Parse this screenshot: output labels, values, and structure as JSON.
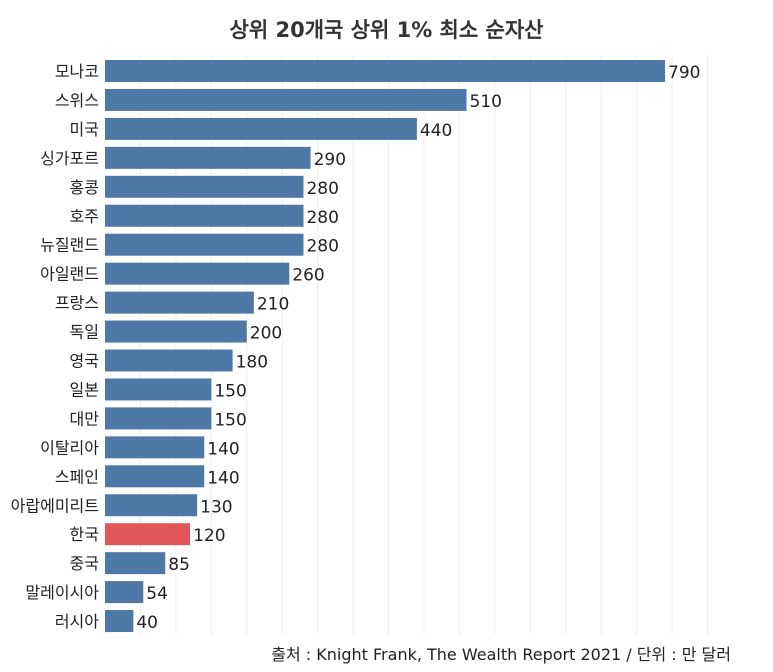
{
  "chart_data": {
    "type": "bar",
    "orientation": "horizontal",
    "title": "상위 20개국 상위 1% 최소 순자산",
    "categories": [
      "모나코",
      "스위스",
      "미국",
      "싱가포르",
      "홍콩",
      "호주",
      "뉴질랜드",
      "아일랜드",
      "프랑스",
      "독일",
      "영국",
      "일본",
      "대만",
      "이탈리아",
      "스페인",
      "아랍에미리트",
      "한국",
      "중국",
      "말레이시아",
      "러시아"
    ],
    "values": [
      790,
      510,
      440,
      290,
      280,
      280,
      280,
      260,
      210,
      200,
      180,
      150,
      150,
      140,
      140,
      130,
      120,
      85,
      54,
      40
    ],
    "highlight": "한국",
    "xlim": [
      0,
      850
    ],
    "grid": true,
    "colors": {
      "bar": "#4e79a7",
      "highlight": "#e15759"
    },
    "source": "출처 : Knight Frank, The Wealth Report 2021 / 단위 : 만 달러"
  }
}
